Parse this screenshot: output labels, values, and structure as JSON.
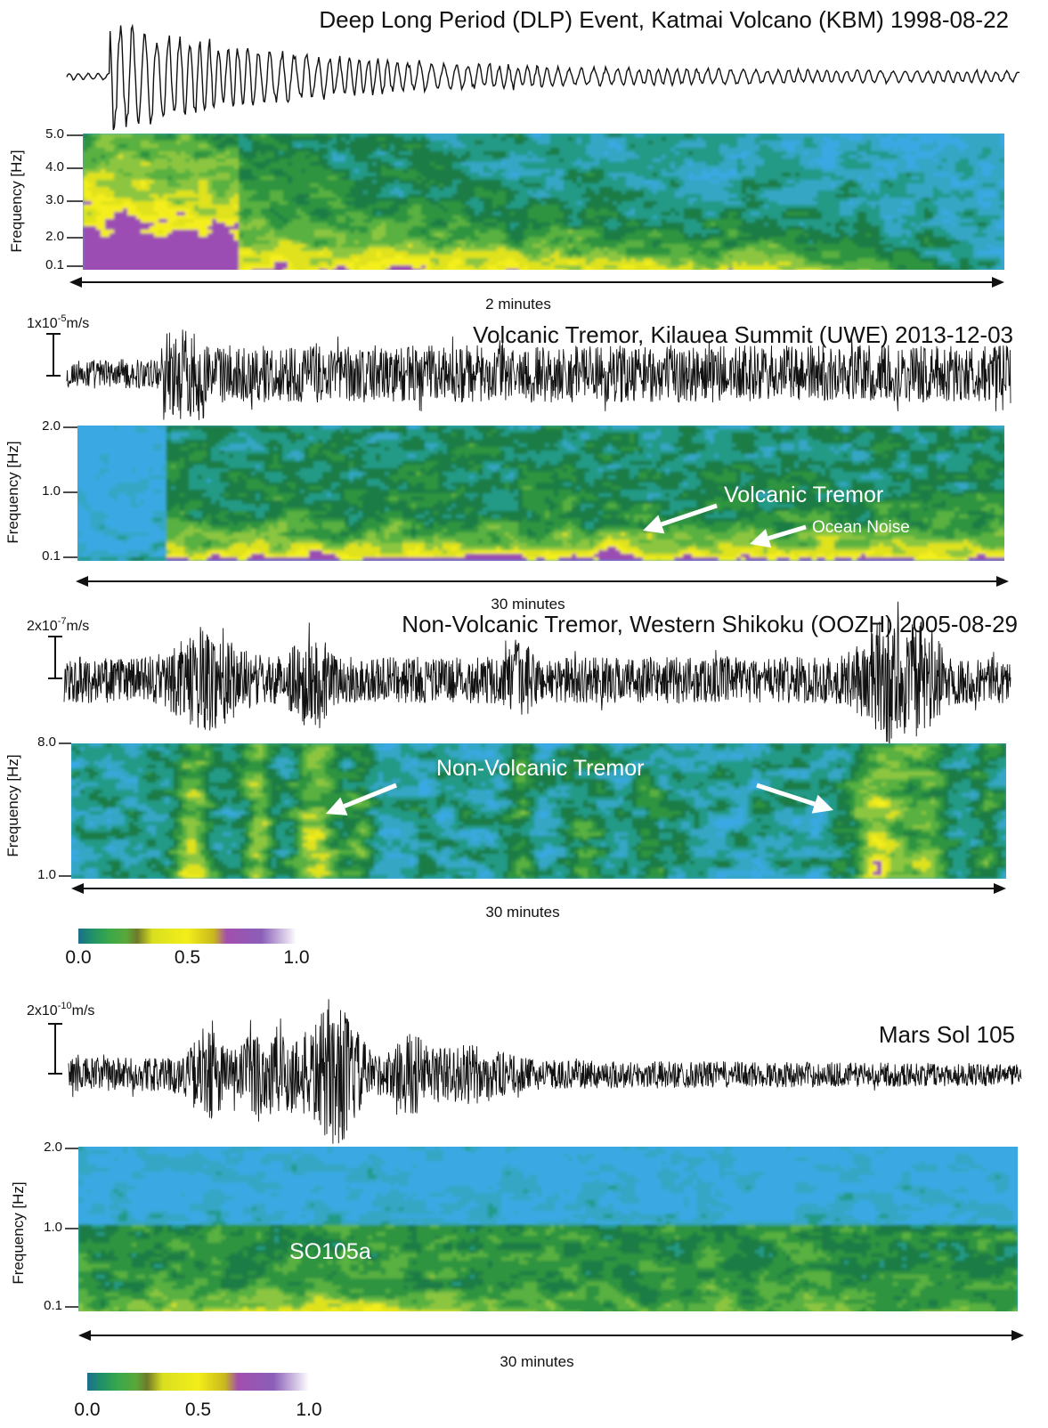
{
  "panels": [
    {
      "title": "Deep Long Period (DLP) Event, Katmai Volcano (KBM) 1998-08-22",
      "y_axis_label": "Frequency [Hz]",
      "y_ticks": [
        "5.0",
        "4.0",
        "3.0",
        "2.0",
        "0.1"
      ],
      "duration": "2 minutes"
    },
    {
      "scale": {
        "base": "1x10",
        "exponent": "-5",
        "unit": "m/s"
      },
      "title": "Volcanic Tremor, Kilauea Summit (UWE) 2013-12-03",
      "y_axis_label": "Frequency [Hz]",
      "y_ticks": [
        "2.0",
        "1.0",
        "0.1"
      ],
      "annotations": [
        "Volcanic Tremor",
        "Ocean Noise"
      ],
      "duration": "30 minutes"
    },
    {
      "scale": {
        "base": "2x10",
        "exponent": "-7",
        "unit": "m/s"
      },
      "title": "Non-Volcanic Tremor, Western Shikoku (OOZH) 2005-08-29",
      "y_axis_label": "Frequency [Hz]",
      "y_ticks": [
        "8.0",
        "1.0"
      ],
      "annotations": [
        "Non-Volcanic Tremor"
      ],
      "duration": "30 minutes"
    },
    {
      "scale": {
        "base": "2x10",
        "exponent": "-10",
        "unit": "m/s"
      },
      "title": "Mars Sol 105",
      "y_axis_label": "Frequency [Hz]",
      "y_ticks": [
        "2.0",
        "1.0",
        "0.1"
      ],
      "annotations": [
        "SO105a"
      ],
      "duration": "30 minutes"
    }
  ],
  "colorbars": [
    {
      "labels": [
        "0.0",
        "0.5",
        "1.0"
      ]
    },
    {
      "labels": [
        "0.0",
        "0.5",
        "1.0"
      ]
    }
  ]
}
